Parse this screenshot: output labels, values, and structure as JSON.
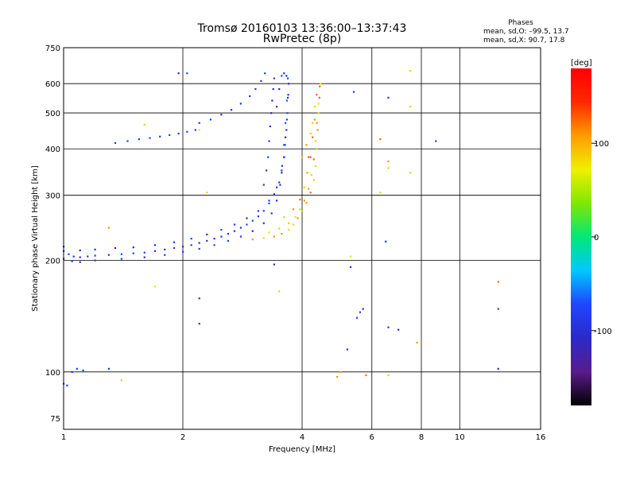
{
  "header": {
    "title_line1": "Tromsø 20160103 13:36:00–13:37:43",
    "title_line2": "RwPretec (8p)"
  },
  "phases": {
    "title": "Phases",
    "line_o": "mean, sd,O: –99.5, 13.7",
    "line_x": "mean, sd,X: 90.7, 17.8"
  },
  "chart_data": {
    "type": "scatter",
    "xlabel": "Frequency [MHz]",
    "ylabel": "Stationary phase Virtual Height [km]",
    "xscale": "log",
    "yscale": "log",
    "xlim": [
      1,
      16
    ],
    "ylim": [
      70,
      750
    ],
    "xticks": [
      1,
      2,
      4,
      6,
      8,
      10,
      16
    ],
    "yticks": [
      75,
      100,
      200,
      300,
      400,
      500,
      600,
      750
    ],
    "grid": true,
    "colorbar": {
      "unit": "[deg]",
      "range": [
        -180,
        180
      ],
      "ticks": [
        100,
        0,
        -100
      ],
      "colors": [
        "#000000",
        "#5a1c8c",
        "#2a2ac8",
        "#1e46ff",
        "#00c8ff",
        "#00e878",
        "#7fe800",
        "#f0f000",
        "#ff9c00",
        "#ff2800",
        "#ff0000"
      ]
    },
    "series": [
      {
        "mode": "O",
        "points": [
          [
            1.0,
            212
          ],
          [
            1.03,
            208
          ],
          [
            1.06,
            205
          ],
          [
            1.1,
            204
          ],
          [
            1.15,
            205
          ],
          [
            1.2,
            206
          ],
          [
            1.3,
            207
          ],
          [
            1.4,
            208
          ],
          [
            1.5,
            209
          ],
          [
            1.6,
            210
          ],
          [
            1.7,
            212
          ],
          [
            1.8,
            214
          ],
          [
            1.9,
            216
          ],
          [
            2.0,
            218
          ],
          [
            2.1,
            220
          ],
          [
            2.2,
            223
          ],
          [
            2.3,
            226
          ],
          [
            2.4,
            229
          ],
          [
            2.5,
            232
          ],
          [
            2.6,
            236
          ],
          [
            2.7,
            240
          ],
          [
            2.8,
            245
          ],
          [
            2.9,
            250
          ],
          [
            3.0,
            256
          ],
          [
            3.1,
            263
          ],
          [
            3.2,
            272
          ],
          [
            3.3,
            285
          ],
          [
            3.4,
            302
          ],
          [
            3.5,
            325
          ],
          [
            3.55,
            350
          ],
          [
            3.6,
            380
          ],
          [
            3.62,
            410
          ],
          [
            3.65,
            450
          ],
          [
            3.67,
            500
          ],
          [
            3.68,
            550
          ],
          [
            3.7,
            600
          ],
          [
            1.0,
            218
          ],
          [
            1.1,
            213
          ],
          [
            1.2,
            214
          ],
          [
            1.35,
            216
          ],
          [
            1.5,
            217
          ],
          [
            1.7,
            220
          ],
          [
            1.9,
            224
          ],
          [
            2.1,
            229
          ],
          [
            2.3,
            235
          ],
          [
            2.5,
            242
          ],
          [
            2.7,
            250
          ],
          [
            2.9,
            260
          ],
          [
            3.1,
            272
          ],
          [
            3.3,
            290
          ],
          [
            3.45,
            315
          ],
          [
            3.55,
            345
          ],
          [
            3.6,
            380
          ],
          [
            3.63,
            430
          ],
          [
            3.66,
            480
          ],
          [
            3.69,
            560
          ],
          [
            1.0,
            202
          ],
          [
            1.05,
            199
          ],
          [
            1.1,
            198
          ],
          [
            1.2,
            200
          ],
          [
            1.4,
            202
          ],
          [
            1.6,
            204
          ],
          [
            1.8,
            207
          ],
          [
            2.0,
            211
          ],
          [
            2.2,
            215
          ],
          [
            2.4,
            220
          ],
          [
            2.6,
            226
          ],
          [
            2.8,
            232
          ],
          [
            3.0,
            240
          ],
          [
            3.2,
            252
          ],
          [
            3.35,
            268
          ],
          [
            3.45,
            290
          ],
          [
            3.52,
            320
          ],
          [
            3.56,
            360
          ],
          [
            3.6,
            410
          ],
          [
            3.63,
            470
          ],
          [
            3.66,
            540
          ],
          [
            3.68,
            620
          ],
          [
            3.2,
            320
          ],
          [
            3.25,
            350
          ],
          [
            3.28,
            380
          ],
          [
            3.3,
            420
          ],
          [
            3.32,
            460
          ],
          [
            3.34,
            500
          ],
          [
            3.36,
            540
          ],
          [
            3.38,
            580
          ],
          [
            3.4,
            620
          ],
          [
            3.45,
            520
          ],
          [
            3.5,
            580
          ],
          [
            3.55,
            630
          ],
          [
            3.6,
            640
          ],
          [
            3.65,
            630
          ],
          [
            1.35,
            415
          ],
          [
            1.45,
            420
          ],
          [
            1.55,
            425
          ],
          [
            1.65,
            428
          ],
          [
            1.75,
            432
          ],
          [
            1.85,
            436
          ],
          [
            1.95,
            440
          ],
          [
            2.05,
            445
          ],
          [
            2.15,
            450
          ],
          [
            2.2,
            470
          ],
          [
            2.35,
            480
          ],
          [
            2.5,
            495
          ],
          [
            2.65,
            510
          ],
          [
            2.8,
            530
          ],
          [
            2.95,
            555
          ],
          [
            3.05,
            580
          ],
          [
            3.15,
            610
          ],
          [
            3.22,
            640
          ],
          [
            1.95,
            640
          ],
          [
            2.05,
            640
          ],
          [
            5.4,
            570
          ],
          [
            8.7,
            420
          ],
          [
            6.6,
            550
          ],
          [
            1.05,
            100
          ],
          [
            1.08,
            102
          ],
          [
            1.12,
            101
          ],
          [
            1.0,
            93
          ],
          [
            1.02,
            92
          ],
          [
            1.3,
            102
          ],
          [
            5.6,
            145
          ],
          [
            5.7,
            148
          ],
          [
            5.5,
            140
          ],
          [
            5.2,
            115
          ],
          [
            6.6,
            132
          ],
          [
            7.0,
            130
          ],
          [
            12.5,
            102
          ],
          [
            12.5,
            148
          ],
          [
            6.5,
            225
          ],
          [
            2.2,
            135
          ],
          [
            2.2,
            158
          ],
          [
            3.4,
            195
          ],
          [
            5.3,
            192
          ]
        ]
      },
      {
        "mode": "X",
        "points": [
          [
            3.0,
            228
          ],
          [
            3.2,
            230
          ],
          [
            3.4,
            232
          ],
          [
            3.55,
            236
          ],
          [
            3.7,
            242
          ],
          [
            3.8,
            250
          ],
          [
            3.9,
            260
          ],
          [
            4.0,
            272
          ],
          [
            4.1,
            286
          ],
          [
            4.2,
            305
          ],
          [
            4.28,
            330
          ],
          [
            4.32,
            360
          ],
          [
            4.35,
            400
          ],
          [
            4.38,
            450
          ],
          [
            4.4,
            500
          ],
          [
            4.42,
            550
          ],
          [
            4.45,
            600
          ],
          [
            3.3,
            238
          ],
          [
            3.5,
            244
          ],
          [
            3.7,
            252
          ],
          [
            3.85,
            262
          ],
          [
            3.95,
            275
          ],
          [
            4.05,
            290
          ],
          [
            4.15,
            312
          ],
          [
            4.22,
            340
          ],
          [
            4.28,
            375
          ],
          [
            4.32,
            420
          ],
          [
            4.36,
            470
          ],
          [
            4.4,
            530
          ],
          [
            4.43,
            590
          ],
          [
            3.6,
            262
          ],
          [
            3.8,
            275
          ],
          [
            3.95,
            292
          ],
          [
            4.05,
            315
          ],
          [
            4.12,
            345
          ],
          [
            4.2,
            380
          ],
          [
            4.25,
            430
          ],
          [
            4.3,
            480
          ],
          [
            4.1,
            410
          ],
          [
            4.2,
            440
          ],
          [
            4.25,
            470
          ],
          [
            4.15,
            380
          ],
          [
            4.3,
            520
          ],
          [
            4.35,
            560
          ],
          [
            1.6,
            465
          ],
          [
            2.3,
            305
          ],
          [
            1.3,
            245
          ],
          [
            1.7,
            170
          ],
          [
            6.3,
            425
          ],
          [
            6.3,
            305
          ],
          [
            6.6,
            355
          ],
          [
            6.6,
            370
          ],
          [
            7.5,
            345
          ],
          [
            7.5,
            520
          ],
          [
            7.5,
            650
          ],
          [
            7.8,
            120
          ],
          [
            12.5,
            175
          ],
          [
            3.5,
            165
          ],
          [
            5.3,
            205
          ],
          [
            4.9,
            97
          ],
          [
            5.0,
            100
          ],
          [
            5.8,
            98
          ],
          [
            6.6,
            98
          ],
          [
            2.2,
            450
          ],
          [
            4.0,
            380
          ],
          [
            1.4,
            95
          ]
        ]
      }
    ]
  }
}
